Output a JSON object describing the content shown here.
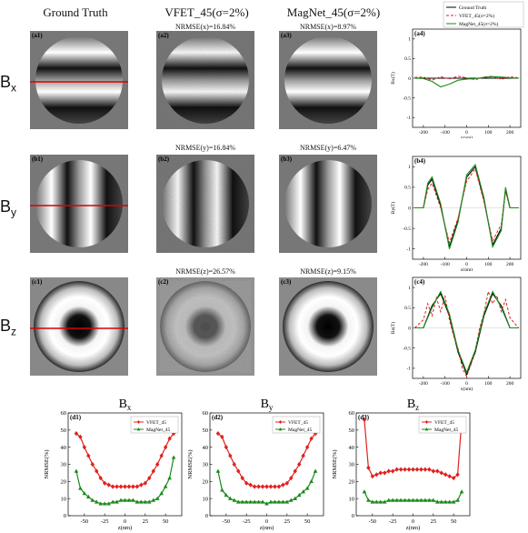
{
  "headers": {
    "gt": "Ground Truth",
    "vfet": "VFET_45(σ=2%)",
    "magnet": "MagNet_45(σ=2%)"
  },
  "rows": [
    {
      "label": "B",
      "sub": "x",
      "tags": [
        "(a1)",
        "(a2)",
        "(a3)",
        "(a4)"
      ],
      "nrmse_vfet": "NRMSE(x)=16.84%",
      "nrmse_magnet": "NRMSE(x)=8.97%"
    },
    {
      "label": "B",
      "sub": "y",
      "tags": [
        "(b1)",
        "(b2)",
        "(b3)",
        "(b4)"
      ],
      "nrmse_vfet": "NRMSE(y)=16.84%",
      "nrmse_magnet": "NRMSE(y)=6.47%"
    },
    {
      "label": "B",
      "sub": "z",
      "tags": [
        "(c1)",
        "(c2)",
        "(c3)",
        "(c4)"
      ],
      "nrmse_vfet": "NRMSE(z)=26.57%",
      "nrmse_magnet": "NRMSE(z)=9.15%"
    }
  ],
  "chart_data": [
    {
      "type": "line",
      "panel": "(a4)",
      "xlabel": "x(nm)",
      "ylabel": "Bx(T)",
      "xlim": [
        -250,
        250
      ],
      "ylim": [
        -1.25,
        1.25
      ],
      "xticks": [
        -200,
        -100,
        0,
        100,
        200
      ],
      "yticks": [
        -1.0,
        -0.5,
        0.0,
        0.5,
        1.0
      ],
      "legend": [
        "Ground Truth",
        "VFET_45(σ=2%)",
        "MagNet_45(σ=2%)"
      ],
      "legend_position": "top-right",
      "series": [
        {
          "name": "Ground Truth",
          "x": [
            -240,
            -200,
            -160,
            -120,
            -80,
            -40,
            0,
            40,
            80,
            120,
            160,
            200,
            240
          ],
          "values": [
            0,
            0,
            0,
            0,
            0,
            0,
            0,
            0,
            0,
            0,
            0,
            0,
            0
          ]
        },
        {
          "name": "VFET_45(σ=2%)",
          "x": [
            -240,
            -200,
            -160,
            -120,
            -80,
            -40,
            0,
            40,
            80,
            120,
            160,
            200,
            240
          ],
          "values": [
            0.02,
            0.03,
            -0.05,
            0.04,
            -0.02,
            0.05,
            0.01,
            -0.04,
            0.03,
            0.05,
            -0.03,
            0.04,
            0.01
          ]
        },
        {
          "name": "MagNet_45(σ=2%)",
          "x": [
            -240,
            -200,
            -160,
            -120,
            -80,
            -40,
            0,
            40,
            80,
            120,
            160,
            200,
            240
          ],
          "values": [
            0,
            -0.01,
            -0.08,
            -0.22,
            -0.15,
            -0.05,
            -0.02,
            -0.01,
            0.02,
            0.04,
            0.03,
            0.01,
            0
          ]
        }
      ]
    },
    {
      "type": "line",
      "panel": "(b4)",
      "xlabel": "x(nm)",
      "ylabel": "By(T)",
      "xlim": [
        -250,
        250
      ],
      "ylim": [
        -1.25,
        1.25
      ],
      "xticks": [
        -200,
        -100,
        0,
        100,
        200
      ],
      "yticks": [
        -1.0,
        -0.5,
        0.0,
        0.5,
        1.0
      ],
      "series": [
        {
          "name": "Ground Truth",
          "x": [
            -240,
            -200,
            -180,
            -160,
            -120,
            -80,
            -40,
            0,
            40,
            80,
            120,
            160,
            180,
            200,
            240
          ],
          "values": [
            0,
            0,
            0.55,
            0.7,
            0.05,
            -0.95,
            -0.3,
            0.75,
            1.0,
            0.2,
            -0.9,
            -0.5,
            0.45,
            0,
            0
          ]
        },
        {
          "name": "VFET_45(σ=2%)",
          "x": [
            -240,
            -200,
            -180,
            -160,
            -120,
            -80,
            -40,
            0,
            40,
            80,
            120,
            160,
            180,
            200,
            240
          ],
          "values": [
            0,
            0,
            0.45,
            0.6,
            0.0,
            -0.85,
            -0.25,
            0.65,
            0.95,
            0.15,
            -0.8,
            -0.4,
            0.4,
            0,
            0
          ]
        },
        {
          "name": "MagNet_45(σ=2%)",
          "x": [
            -240,
            -200,
            -180,
            -160,
            -120,
            -80,
            -40,
            0,
            40,
            80,
            120,
            160,
            180,
            200,
            240
          ],
          "values": [
            0,
            0,
            0.6,
            0.75,
            0.1,
            -1.0,
            -0.35,
            0.8,
            1.05,
            0.25,
            -0.95,
            -0.55,
            0.5,
            0,
            0
          ]
        }
      ]
    },
    {
      "type": "line",
      "panel": "(c4)",
      "xlabel": "x(nm)",
      "ylabel": "Bz(T)",
      "xlim": [
        -250,
        250
      ],
      "ylim": [
        -1.25,
        1.25
      ],
      "xticks": [
        -200,
        -100,
        0,
        100,
        200
      ],
      "yticks": [
        -1.0,
        -0.5,
        0.0,
        0.5,
        1.0
      ],
      "series": [
        {
          "name": "Ground Truth",
          "x": [
            -240,
            -200,
            -160,
            -120,
            -80,
            -40,
            0,
            40,
            80,
            120,
            160,
            200,
            240
          ],
          "values": [
            0,
            0,
            0.55,
            0.85,
            0.3,
            -0.6,
            -1.15,
            -0.6,
            0.3,
            0.85,
            0.55,
            0,
            0
          ]
        },
        {
          "name": "VFET_45(σ=2%)",
          "x": [
            -240,
            -200,
            -180,
            -160,
            -140,
            -120,
            -100,
            -80,
            -60,
            -40,
            -20,
            0,
            20,
            40,
            60,
            80,
            100,
            120,
            140,
            160,
            180,
            200,
            240
          ],
          "values": [
            0,
            0.2,
            0.6,
            0.3,
            0.75,
            0.4,
            0.8,
            0.2,
            -0.2,
            -0.5,
            -1.0,
            -1.2,
            -0.9,
            -0.55,
            0.0,
            0.35,
            0.9,
            0.6,
            0.8,
            0.4,
            0.7,
            0.25,
            0
          ]
        },
        {
          "name": "MagNet_45(σ=2%)",
          "x": [
            -240,
            -200,
            -160,
            -120,
            -80,
            -40,
            0,
            40,
            80,
            120,
            160,
            200,
            240
          ],
          "values": [
            0,
            0,
            0.5,
            0.9,
            0.35,
            -0.55,
            -1.1,
            -0.55,
            0.35,
            0.9,
            0.5,
            0,
            0
          ]
        }
      ]
    },
    {
      "type": "line",
      "panel": "(d1)",
      "title": "Bx",
      "xlabel": "z(nm)",
      "ylabel": "NRMSE(%)",
      "xlim": [
        -70,
        70
      ],
      "ylim": [
        0,
        60
      ],
      "xticks": [
        -50,
        -25,
        0,
        25,
        50
      ],
      "yticks": [
        0,
        10,
        20,
        30,
        40,
        50,
        60
      ],
      "legend": [
        "VFET_45",
        "MagNet_45"
      ],
      "legend_position": "top-right",
      "series": [
        {
          "name": "VFET_45",
          "x": [
            -60,
            -55,
            -50,
            -45,
            -40,
            -35,
            -30,
            -25,
            -20,
            -15,
            -10,
            -5,
            0,
            5,
            10,
            15,
            20,
            25,
            30,
            35,
            40,
            45,
            50,
            55,
            60
          ],
          "values": [
            48,
            46,
            40,
            35,
            30,
            26,
            22,
            19,
            18,
            17,
            17,
            17,
            17,
            17,
            17,
            17,
            18,
            19,
            22,
            26,
            30,
            35,
            40,
            45,
            48
          ]
        },
        {
          "name": "MagNet_45",
          "x": [
            -60,
            -55,
            -50,
            -45,
            -40,
            -35,
            -30,
            -25,
            -20,
            -15,
            -10,
            -5,
            0,
            5,
            10,
            15,
            20,
            25,
            30,
            35,
            40,
            45,
            50,
            55,
            60
          ],
          "values": [
            26,
            16,
            13,
            11,
            9,
            8,
            7,
            7,
            7,
            8,
            8,
            9,
            9,
            9,
            9,
            8,
            8,
            8,
            8,
            9,
            10,
            13,
            17,
            22,
            34
          ]
        }
      ]
    },
    {
      "type": "line",
      "panel": "(d2)",
      "title": "By",
      "xlabel": "z(nm)",
      "ylabel": "NRMSE(%)",
      "xlim": [
        -70,
        70
      ],
      "ylim": [
        0,
        60
      ],
      "xticks": [
        -50,
        -25,
        0,
        25,
        50
      ],
      "yticks": [
        0,
        10,
        20,
        30,
        40,
        50,
        60
      ],
      "legend": [
        "VFET_45",
        "MagNet_45"
      ],
      "legend_position": "top-right",
      "series": [
        {
          "name": "VFET_45",
          "x": [
            -60,
            -55,
            -50,
            -45,
            -40,
            -35,
            -30,
            -25,
            -20,
            -15,
            -10,
            -5,
            0,
            5,
            10,
            15,
            20,
            25,
            30,
            35,
            40,
            45,
            50,
            55,
            60
          ],
          "values": [
            48,
            46,
            40,
            35,
            30,
            26,
            22,
            19,
            18,
            17,
            17,
            17,
            17,
            17,
            17,
            17,
            18,
            19,
            22,
            26,
            30,
            35,
            40,
            45,
            48
          ]
        },
        {
          "name": "MagNet_45",
          "x": [
            -60,
            -55,
            -50,
            -45,
            -40,
            -35,
            -30,
            -25,
            -20,
            -15,
            -10,
            -5,
            0,
            5,
            10,
            15,
            20,
            25,
            30,
            35,
            40,
            45,
            50,
            55,
            60
          ],
          "values": [
            26,
            15,
            12,
            10,
            9,
            8,
            8,
            8,
            8,
            8,
            8,
            8,
            7,
            8,
            8,
            8,
            8,
            8,
            9,
            10,
            12,
            14,
            16,
            20,
            26
          ]
        }
      ]
    },
    {
      "type": "line",
      "panel": "(d3)",
      "title": "Bz",
      "xlabel": "z(nm)",
      "ylabel": "NRMSE(%)",
      "xlim": [
        -70,
        70
      ],
      "ylim": [
        0,
        60
      ],
      "xticks": [
        -50,
        -25,
        0,
        25,
        50
      ],
      "yticks": [
        0,
        10,
        20,
        30,
        40,
        50,
        60
      ],
      "legend": [
        "VFET_45",
        "MagNet_45"
      ],
      "legend_position": "top-right",
      "series": [
        {
          "name": "VFET_45",
          "x": [
            -60,
            -55,
            -50,
            -45,
            -40,
            -35,
            -30,
            -25,
            -20,
            -15,
            -10,
            -5,
            0,
            5,
            10,
            15,
            20,
            25,
            30,
            35,
            40,
            45,
            50,
            55,
            60
          ],
          "values": [
            56,
            28,
            23,
            24,
            25,
            25,
            26,
            26,
            27,
            27,
            27,
            27,
            27,
            27,
            27,
            27,
            27,
            26,
            26,
            25,
            24,
            23,
            22,
            24,
            56
          ]
        },
        {
          "name": "MagNet_45",
          "x": [
            -60,
            -55,
            -50,
            -45,
            -40,
            -35,
            -30,
            -25,
            -20,
            -15,
            -10,
            -5,
            0,
            5,
            10,
            15,
            20,
            25,
            30,
            35,
            40,
            45,
            50,
            55,
            60
          ],
          "values": [
            14,
            9,
            8,
            8,
            8,
            8,
            9,
            9,
            9,
            9,
            9,
            9,
            9,
            9,
            9,
            9,
            9,
            9,
            8,
            8,
            8,
            8,
            8,
            9,
            14
          ]
        }
      ]
    }
  ]
}
